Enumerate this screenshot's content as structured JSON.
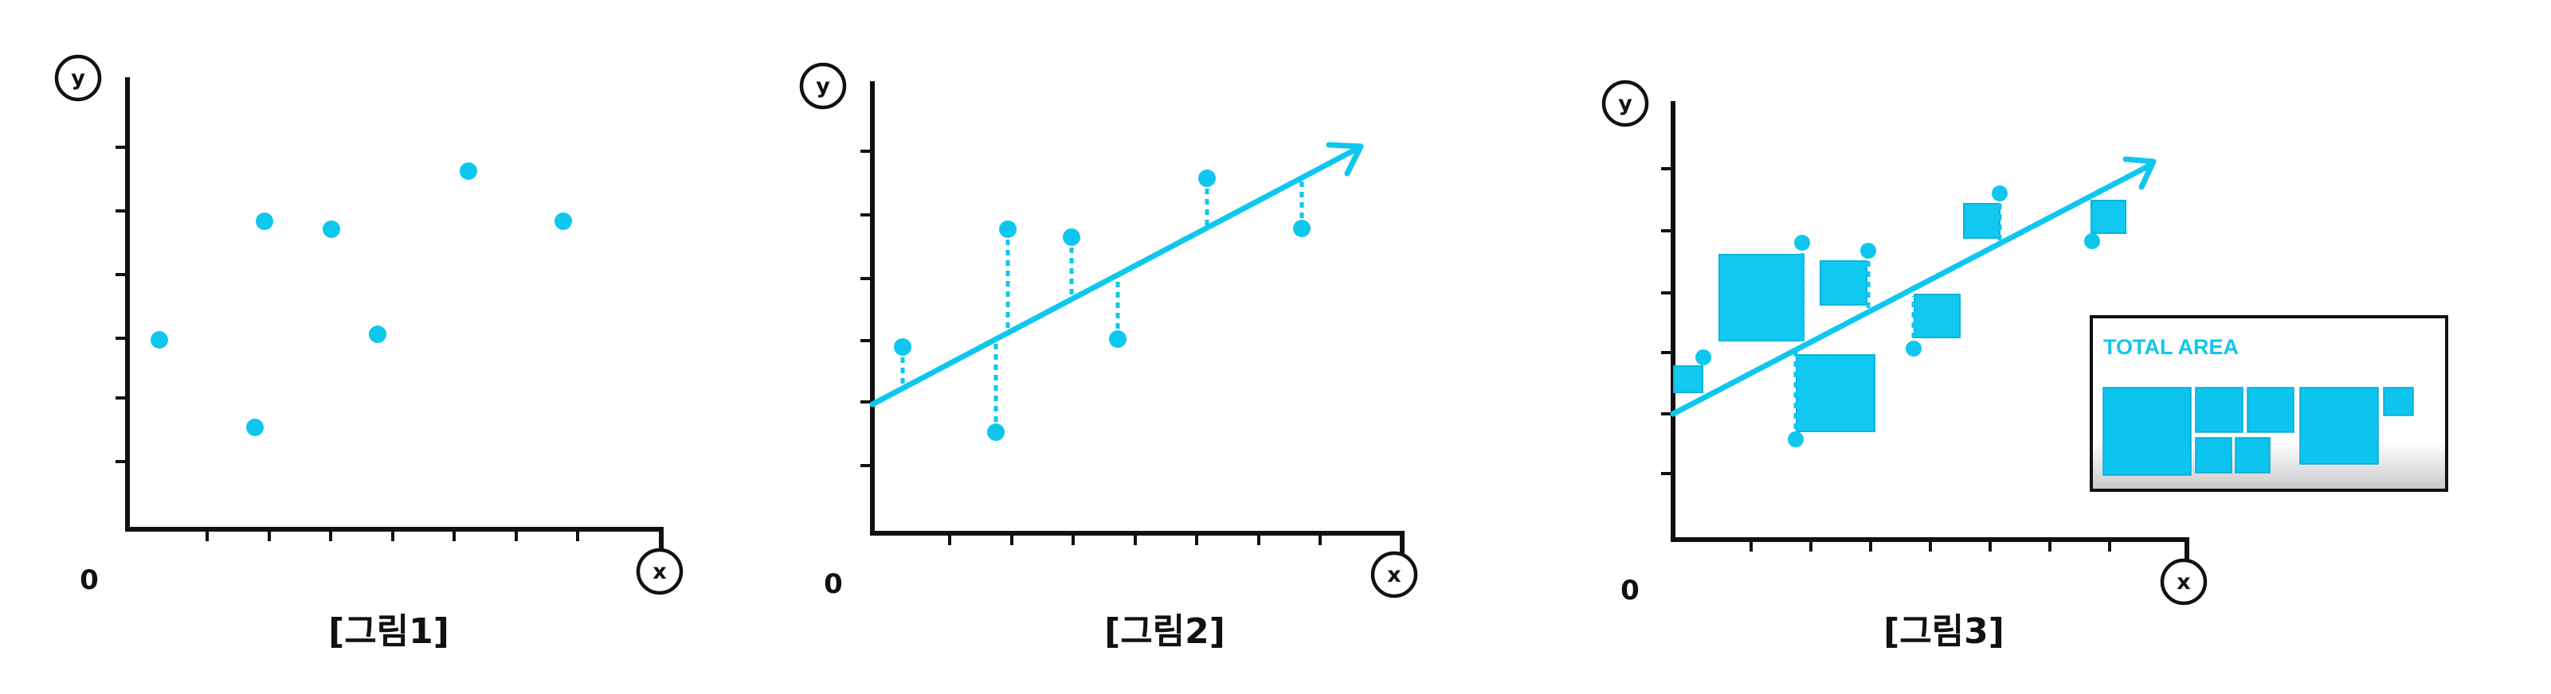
{
  "origin_label": "0",
  "x_axis_letter": "x",
  "y_axis_letter": "y",
  "colors": {
    "accent": "#0fc7ee",
    "axis": "#111111"
  },
  "panels": [
    {
      "caption": "[그림1]"
    },
    {
      "caption": "[그림2]"
    },
    {
      "caption": "[그림3]",
      "legend_title": "TOTAL AREA"
    }
  ]
}
